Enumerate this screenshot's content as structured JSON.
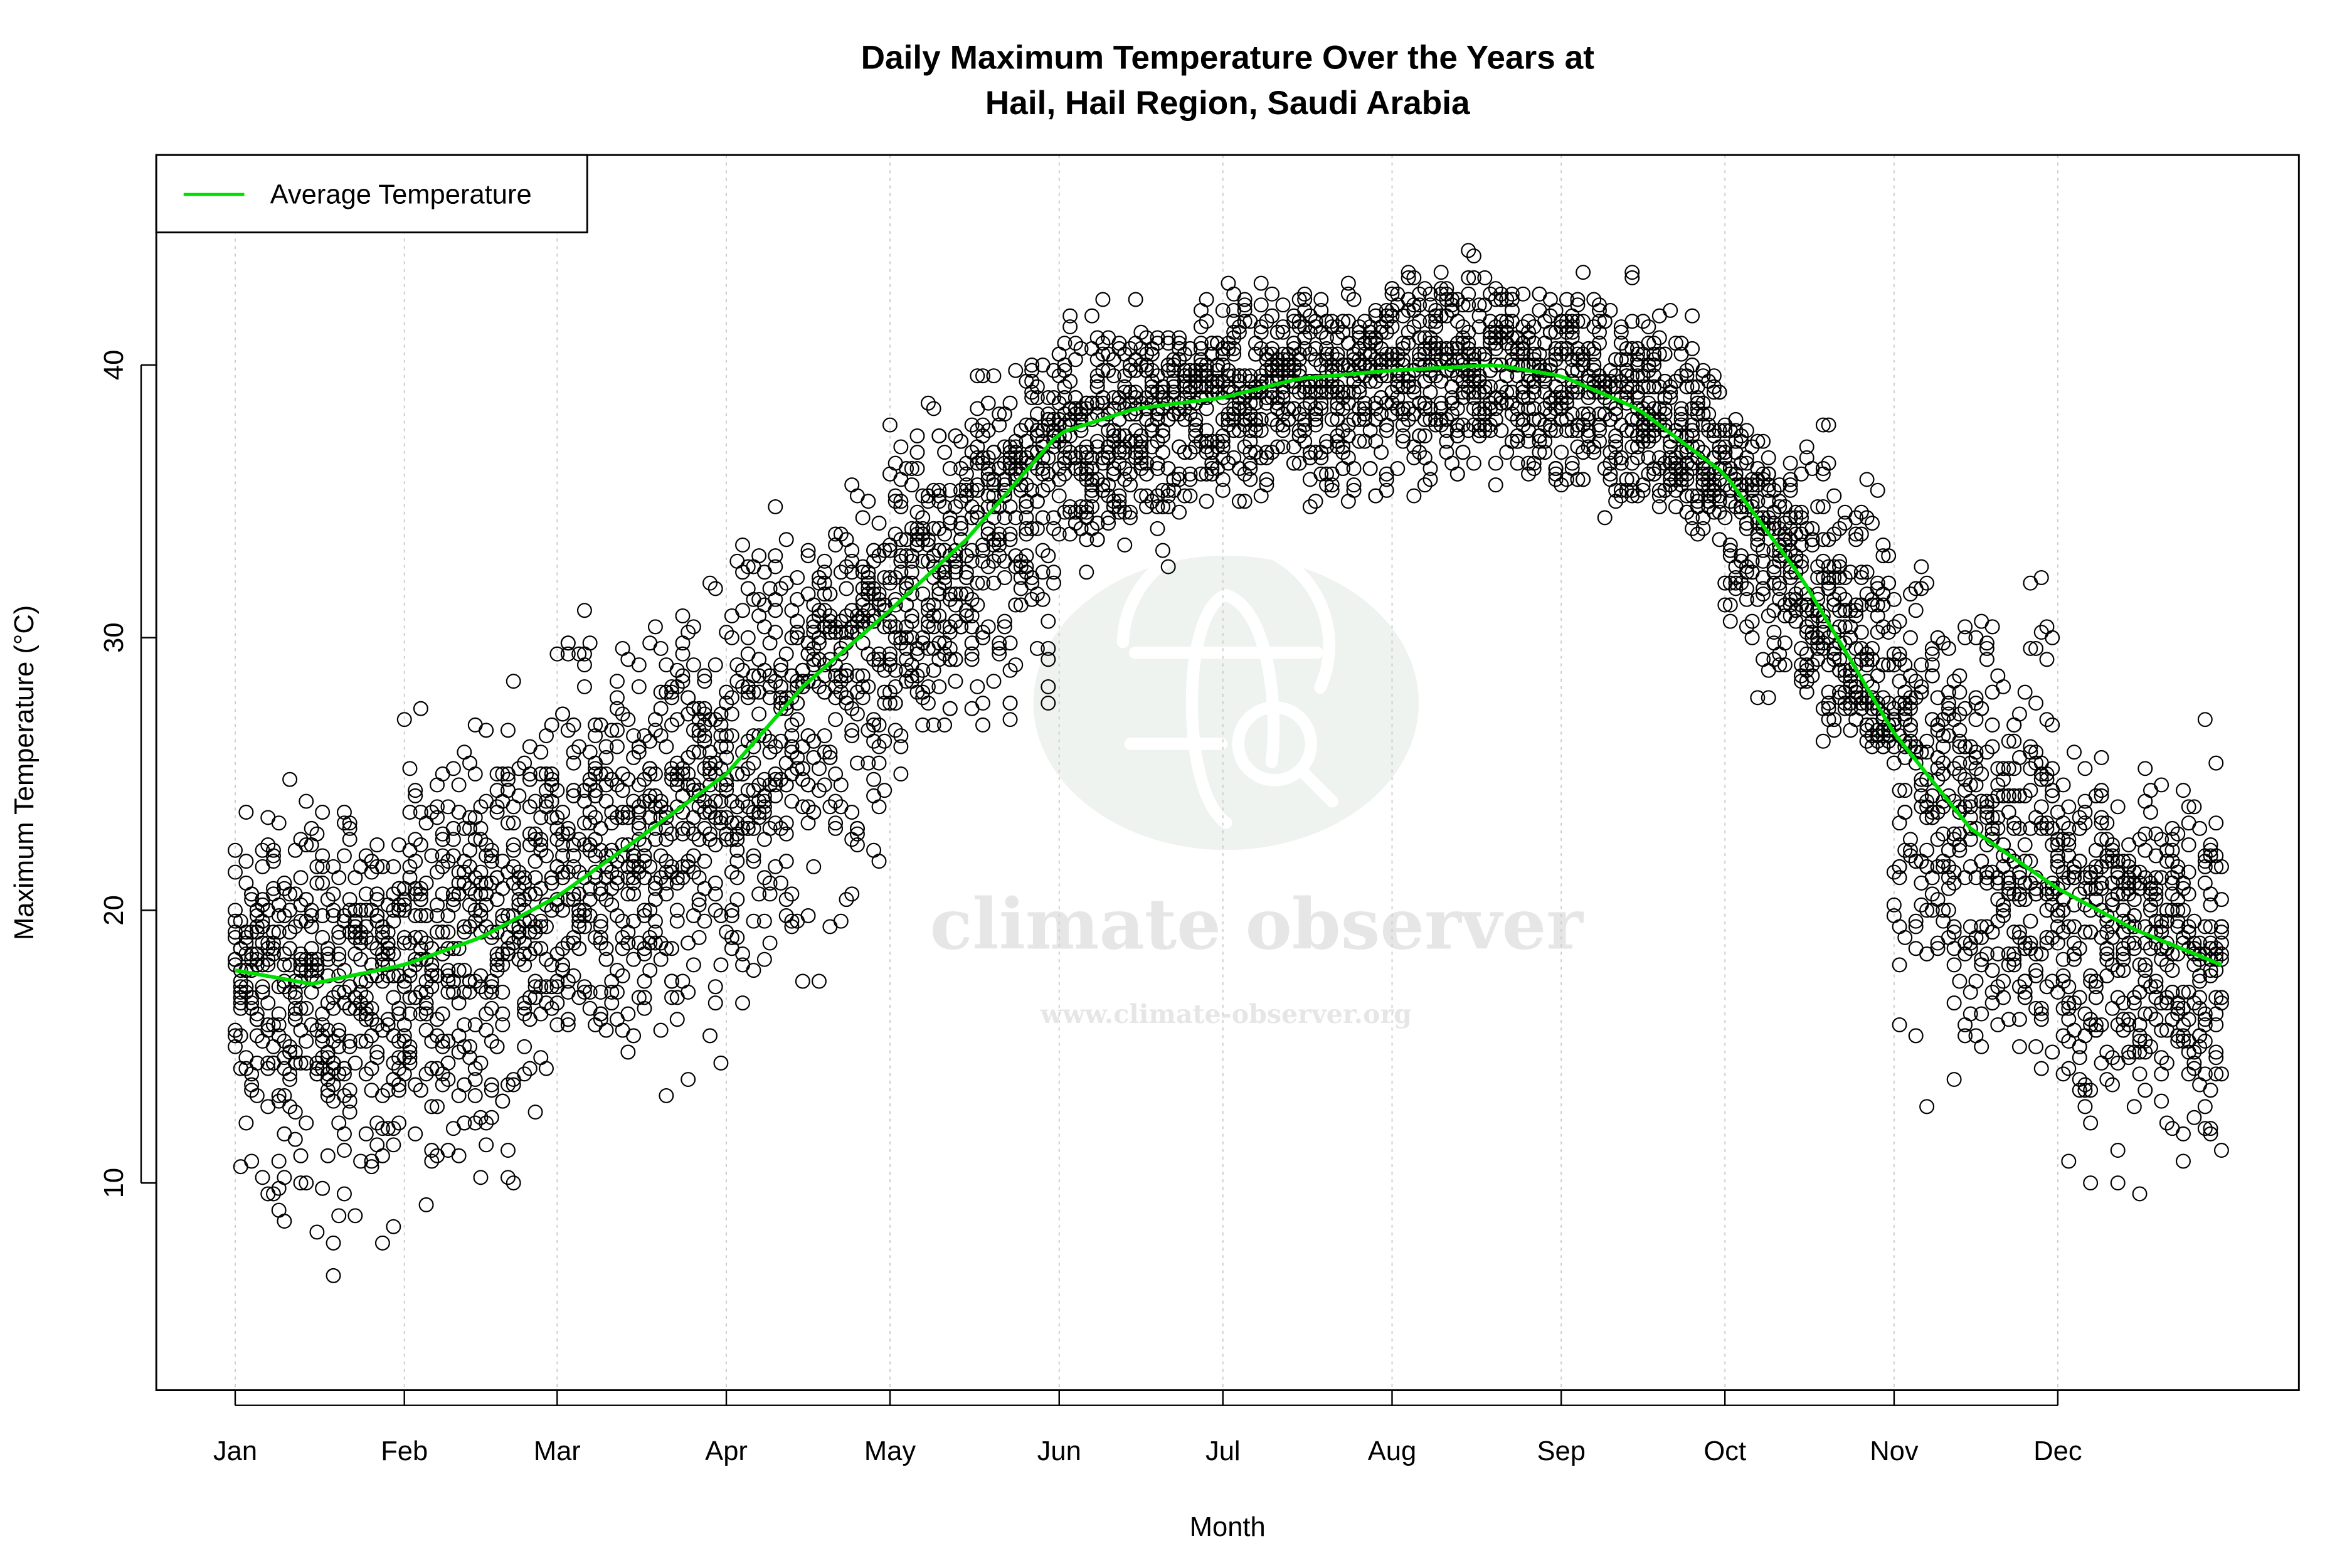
{
  "chart_data": {
    "type": "scatter",
    "title_lines": [
      "Daily Maximum Temperature Over the Years at",
      "Hail, Hail Region, Saudi Arabia"
    ],
    "xlabel": "Month",
    "ylabel": "Maximum Temperature (°C)",
    "x_unit": "day of year",
    "xlim": [
      1,
      365
    ],
    "ylim": [
      2.4,
      47.7
    ],
    "x_ticks": [
      {
        "label": "Jan",
        "day": 1
      },
      {
        "label": "Feb",
        "day": 32
      },
      {
        "label": "Mar",
        "day": 60
      },
      {
        "label": "Apr",
        "day": 91
      },
      {
        "label": "May",
        "day": 121
      },
      {
        "label": "Jun",
        "day": 152
      },
      {
        "label": "Jul",
        "day": 182
      },
      {
        "label": "Aug",
        "day": 213
      },
      {
        "label": "Sep",
        "day": 244
      },
      {
        "label": "Oct",
        "day": 274
      },
      {
        "label": "Nov",
        "day": 305
      },
      {
        "label": "Dec",
        "day": 335
      }
    ],
    "y_ticks": [
      10,
      20,
      30,
      40
    ],
    "grid": "vertical dotted at month ticks",
    "legend": {
      "position": "top-left",
      "entries": [
        {
          "label": "Average Temperature",
          "color": "#00dd00"
        }
      ]
    },
    "scatter_marker": "open circle",
    "scatter_color": "#000000",
    "observed_range_by_month": [
      {
        "month": "Jan",
        "min": 4,
        "max": 27
      },
      {
        "month": "Feb",
        "min": 6,
        "max": 31.5
      },
      {
        "month": "Mar",
        "min": 9,
        "max": 35
      },
      {
        "month": "Apr",
        "min": 13,
        "max": 38
      },
      {
        "month": "May",
        "min": 22.5,
        "max": 42
      },
      {
        "month": "Jun",
        "min": 30,
        "max": 44
      },
      {
        "month": "Jul",
        "min": 32.5,
        "max": 44.5
      },
      {
        "month": "Aug",
        "min": 33,
        "max": 46
      },
      {
        "month": "Sep",
        "min": 32,
        "max": 45
      },
      {
        "month": "Oct",
        "min": 24.5,
        "max": 40
      },
      {
        "month": "Nov",
        "min": 9.5,
        "max": 36
      },
      {
        "month": "Dec",
        "min": 6,
        "max": 29
      }
    ],
    "series": [
      {
        "name": "Average Temperature",
        "color": "#00dd00",
        "x": [
          1,
          15,
          32,
          46,
          60,
          74,
          91,
          105,
          121,
          135,
          152,
          166,
          182,
          196,
          213,
          232,
          244,
          258,
          274,
          288,
          305,
          319,
          335,
          349,
          365
        ],
        "y": [
          17.8,
          17.3,
          18.0,
          19.0,
          20.5,
          22.5,
          25.0,
          28.2,
          31.0,
          33.6,
          37.5,
          38.4,
          38.8,
          39.5,
          39.8,
          40.0,
          39.6,
          38.4,
          36.0,
          32.2,
          26.5,
          23.0,
          20.8,
          19.3,
          18.0
        ]
      }
    ]
  },
  "watermark": {
    "brand": "climate observer",
    "url": "www.climate-observer.org"
  }
}
